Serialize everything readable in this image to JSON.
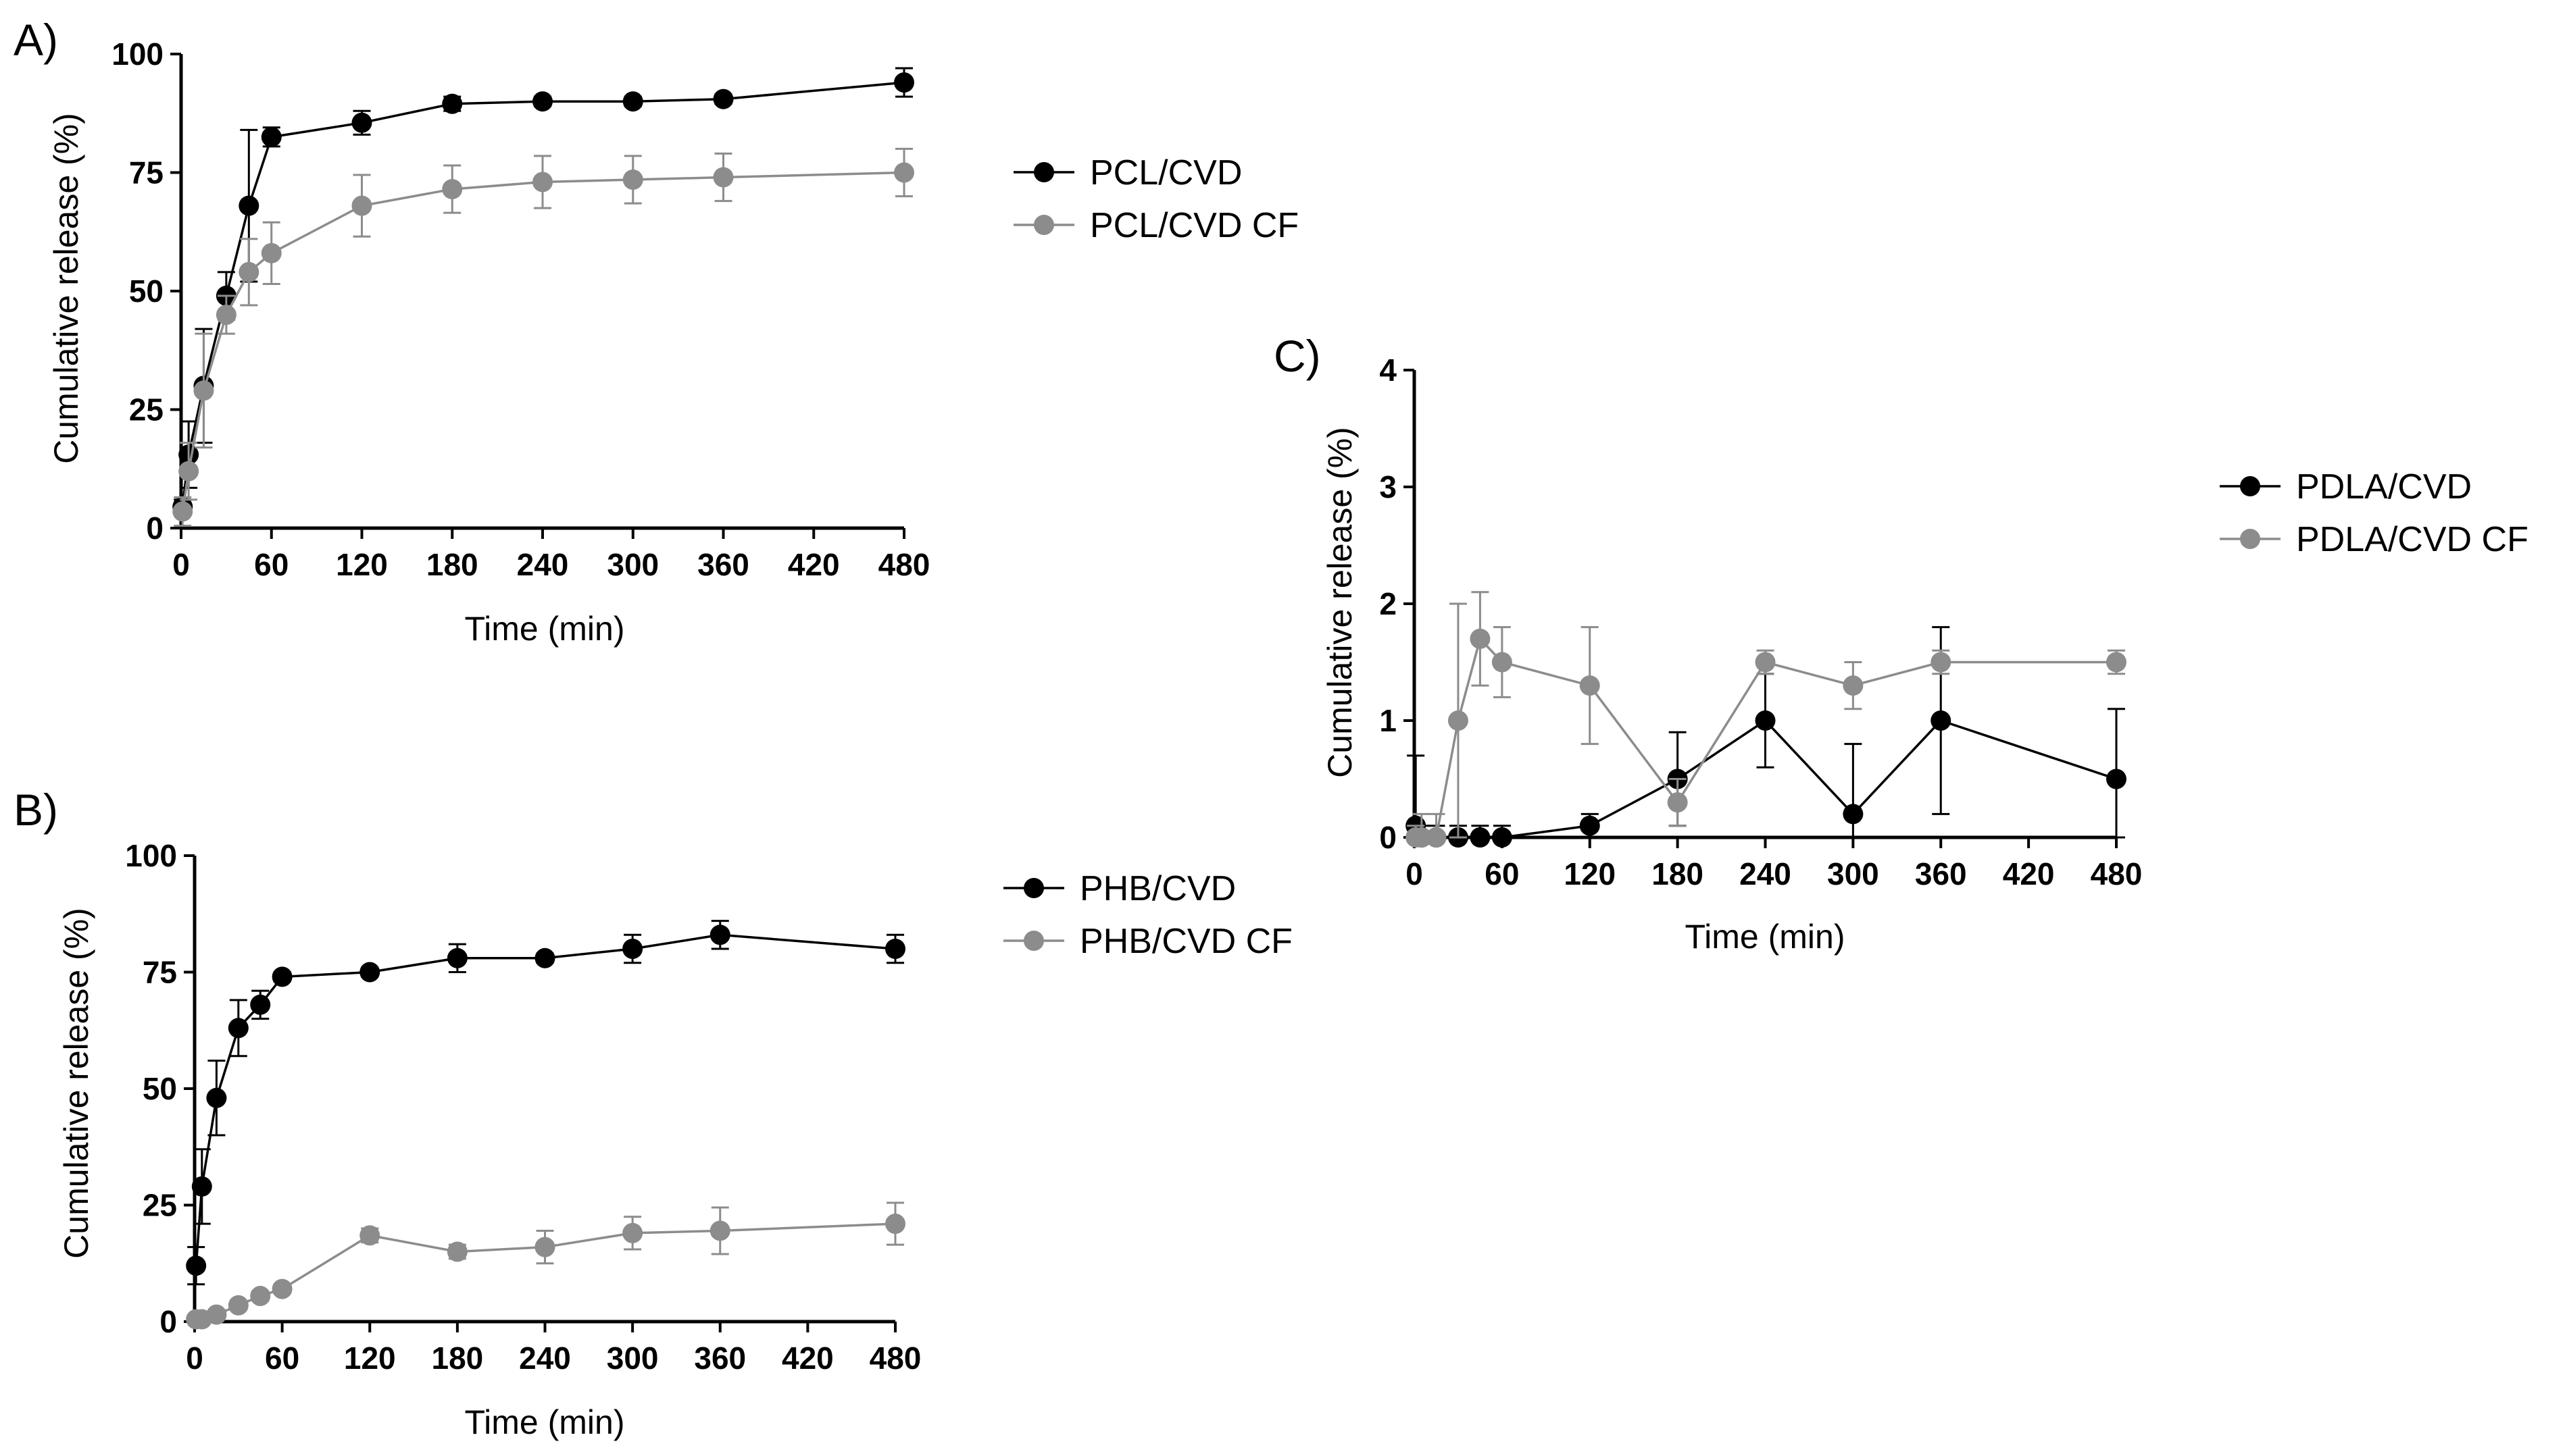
{
  "chart_data": [
    {
      "panel_label": "A)",
      "type": "line",
      "xlabel": "Time (min)",
      "ylabel": "Cumulative release (%)",
      "xlim": [
        0,
        480
      ],
      "ylim": [
        0,
        100
      ],
      "xticks": [
        0,
        60,
        120,
        180,
        240,
        300,
        360,
        420,
        480
      ],
      "yticks": [
        0,
        25,
        50,
        75,
        100
      ],
      "grid": false,
      "legend_position": "right",
      "series": [
        {
          "name": "PCL/CVD",
          "color": "#000000",
          "x": [
            1,
            5,
            15,
            30,
            45,
            60,
            120,
            180,
            240,
            300,
            360,
            480
          ],
          "y": [
            4.5,
            15.5,
            30,
            49,
            68,
            82.5,
            85.5,
            89.5,
            90,
            90,
            90.5,
            94
          ],
          "err": [
            1.5,
            7,
            12,
            5,
            16,
            2,
            2.5,
            1.5,
            1,
            1,
            1,
            3
          ]
        },
        {
          "name": "PCL/CVD CF",
          "color": "#8c8c8c",
          "x": [
            1,
            5,
            15,
            30,
            45,
            60,
            120,
            180,
            240,
            300,
            360,
            480
          ],
          "y": [
            3.5,
            12,
            29,
            45,
            54,
            58,
            68,
            71.5,
            73,
            73.5,
            74,
            75
          ],
          "err": [
            3,
            6,
            12,
            4,
            7,
            6.5,
            6.5,
            5,
            5.5,
            5,
            5,
            5
          ]
        }
      ]
    },
    {
      "panel_label": "B)",
      "type": "line",
      "xlabel": "Time (min)",
      "ylabel": "Cumulative release (%)",
      "xlim": [
        0,
        480
      ],
      "ylim": [
        0,
        100
      ],
      "xticks": [
        0,
        60,
        120,
        180,
        240,
        300,
        360,
        420,
        480
      ],
      "yticks": [
        0,
        25,
        50,
        75,
        100
      ],
      "grid": false,
      "legend_position": "right",
      "series": [
        {
          "name": "PHB/CVD",
          "color": "#000000",
          "x": [
            1,
            5,
            15,
            30,
            45,
            60,
            120,
            180,
            240,
            300,
            360,
            480
          ],
          "y": [
            12,
            29,
            48,
            63,
            68,
            74,
            75,
            78,
            78,
            80,
            83,
            80
          ],
          "err": [
            4,
            8,
            8,
            6,
            3,
            1,
            1,
            3,
            1,
            3,
            3,
            3
          ]
        },
        {
          "name": "PHB/CVD CF",
          "color": "#8c8c8c",
          "x": [
            1,
            5,
            15,
            30,
            45,
            60,
            120,
            180,
            240,
            300,
            360,
            480
          ],
          "y": [
            0.5,
            0.5,
            1.5,
            3.5,
            5.5,
            7,
            18.5,
            15,
            16,
            19,
            19.5,
            21
          ],
          "err": [
            0.5,
            0.5,
            0.8,
            1,
            1,
            1,
            1.5,
            1.5,
            3.5,
            3.5,
            5,
            4.5
          ]
        }
      ]
    },
    {
      "panel_label": "C)",
      "type": "line",
      "xlabel": "Time (min)",
      "ylabel": "Cumulative release (%)",
      "xlim": [
        0,
        480
      ],
      "ylim": [
        0,
        4
      ],
      "xticks": [
        0,
        60,
        120,
        180,
        240,
        300,
        360,
        420,
        480
      ],
      "yticks": [
        0,
        1,
        2,
        3,
        4
      ],
      "grid": false,
      "legend_position": "right",
      "series": [
        {
          "name": "PDLA/CVD",
          "color": "#000000",
          "x": [
            1,
            5,
            15,
            30,
            45,
            60,
            120,
            180,
            240,
            300,
            360,
            480
          ],
          "y": [
            0.1,
            0,
            0,
            0,
            0,
            0,
            0.1,
            0.5,
            1,
            0.2,
            1,
            0.5
          ],
          "err": [
            0.6,
            0.1,
            0.1,
            0.1,
            0.1,
            0.1,
            0.1,
            0.4,
            0.4,
            0.6,
            0.8,
            0.6
          ]
        },
        {
          "name": "PDLA/CVD CF",
          "color": "#8c8c8c",
          "x": [
            1,
            5,
            15,
            30,
            45,
            60,
            120,
            180,
            240,
            300,
            360,
            480
          ],
          "y": [
            0,
            0,
            0,
            1,
            1.7,
            1.5,
            1.3,
            0.3,
            1.5,
            1.3,
            1.5,
            1.5
          ],
          "err": [
            0.1,
            0.2,
            0.2,
            1,
            0.4,
            0.3,
            0.5,
            0.2,
            0.1,
            0.2,
            0.1,
            0.1
          ]
        }
      ]
    }
  ]
}
